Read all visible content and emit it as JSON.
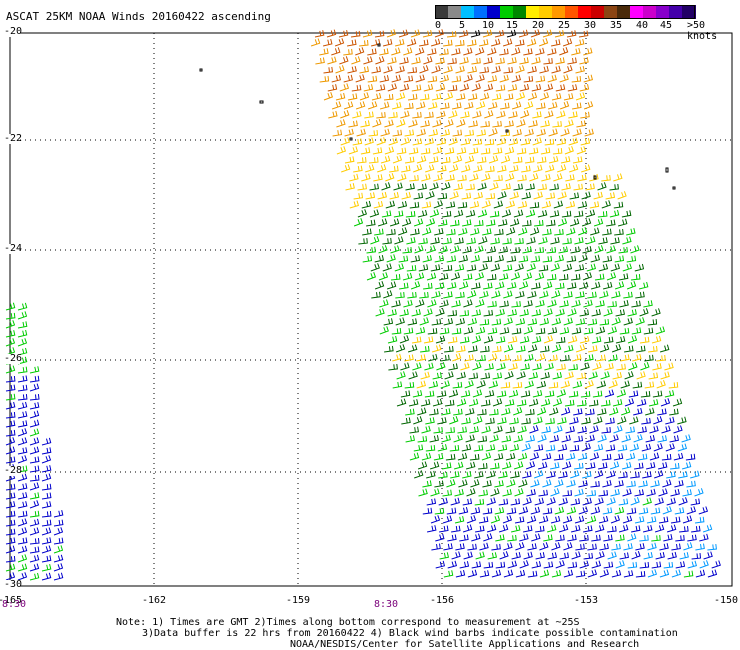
{
  "title": "ASCAT 25KM NOAA Winds 20160422 ascending",
  "colorbar": {
    "labels": [
      "0",
      "5",
      "10",
      "15",
      "20",
      "25",
      "30",
      "35",
      "40",
      "45"
    ],
    "max_label": ">50 knots",
    "colors": [
      "#3a3a3a",
      "#8a8a8a",
      "#00c0ff",
      "#0070ff",
      "#0000cc",
      "#00cc00",
      "#008800",
      "#ffee00",
      "#ffcc00",
      "#ff9900",
      "#ff5500",
      "#ff0000",
      "#cc0000",
      "#8b4513",
      "#4a2a0a",
      "#ff00ff",
      "#cc00cc",
      "#8800cc",
      "#4400aa",
      "#220066"
    ]
  },
  "map": {
    "lat_labels": [
      "-20",
      "-22",
      "-24",
      "-26",
      "-28",
      "-30"
    ],
    "lat_values": [
      -20,
      -22,
      -24,
      -26,
      -28,
      -30
    ],
    "lon_labels": [
      "-165",
      "-162",
      "-159",
      "-156",
      "-153",
      "-150"
    ],
    "lon_values": [
      -165,
      -162,
      -159,
      -156,
      -153,
      -150
    ],
    "time_labels": [
      "8:30",
      "8:30"
    ],
    "grid": "dotted"
  },
  "notes": {
    "line1": "Note: 1) Times are GMT 2)Times along bottom correspond to measurement at ~25S",
    "line2": "3)Data buffer is 22 hrs from 20160422 4) Black wind barbs indicate possible contamination",
    "line3": "NOAA/NESDIS/Center for Satellite Applications and Research"
  },
  "wind_colors": {
    "dark_orange": "#cc5500",
    "orange": "#ee9900",
    "yellow": "#ffcc00",
    "dark_green": "#006600",
    "green": "#00cc00",
    "blue": "#0000cc",
    "light_blue": "#0099ff",
    "contaminated": "#000000"
  }
}
